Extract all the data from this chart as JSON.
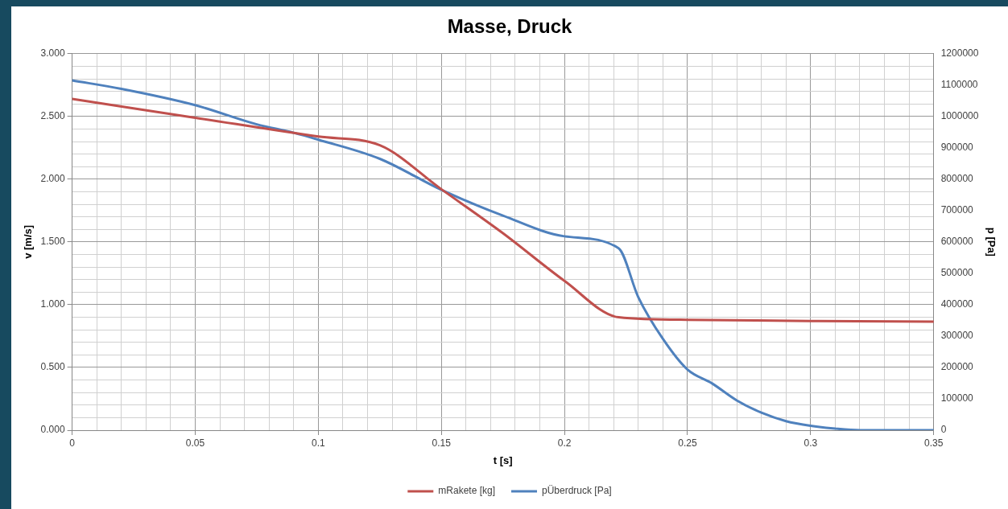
{
  "chart_data": {
    "type": "line",
    "title": "Masse, Druck",
    "xlabel": "t [s]",
    "ylabel": "v [m/s]",
    "y2label": "p [Pa]",
    "xlim": [
      0,
      0.35
    ],
    "xticks": [
      0,
      {
        "value": 0.01,
        "label": null
      },
      {
        "value": 0.02,
        "label": null
      },
      {
        "value": 0.03,
        "label": null
      },
      {
        "value": 0.04,
        "label": null
      },
      0.05,
      {
        "value": 0.06,
        "label": null
      },
      {
        "value": 0.07,
        "label": null
      },
      {
        "value": 0.08,
        "label": null
      },
      {
        "value": 0.09,
        "label": null
      },
      0.1,
      {
        "value": 0.11,
        "label": null
      },
      {
        "value": 0.12,
        "label": null
      },
      {
        "value": 0.13,
        "label": null
      },
      {
        "value": 0.14,
        "label": null
      },
      0.15,
      {
        "value": 0.16,
        "label": null
      },
      {
        "value": 0.17,
        "label": null
      },
      {
        "value": 0.18,
        "label": null
      },
      {
        "value": 0.19,
        "label": null
      },
      0.2,
      {
        "value": 0.21,
        "label": null
      },
      {
        "value": 0.22,
        "label": null
      },
      {
        "value": 0.23,
        "label": null
      },
      {
        "value": 0.24,
        "label": null
      },
      0.25,
      {
        "value": 0.26,
        "label": null
      },
      {
        "value": 0.27,
        "label": null
      },
      {
        "value": 0.28,
        "label": null
      },
      {
        "value": 0.29,
        "label": null
      },
      0.3,
      {
        "value": 0.31,
        "label": null
      },
      {
        "value": 0.32,
        "label": null
      },
      {
        "value": 0.33,
        "label": null
      },
      {
        "value": 0.34,
        "label": null
      },
      0.35
    ],
    "ylim": [
      0,
      3
    ],
    "yticks": [
      {
        "value": 0,
        "label": "0.000"
      },
      {
        "value": 0.1,
        "label": null
      },
      {
        "value": 0.2,
        "label": null
      },
      {
        "value": 0.3,
        "label": null
      },
      {
        "value": 0.4,
        "label": null
      },
      {
        "value": 0.5,
        "label": "0.500"
      },
      {
        "value": 0.6,
        "label": null
      },
      {
        "value": 0.7,
        "label": null
      },
      {
        "value": 0.8,
        "label": null
      },
      {
        "value": 0.9,
        "label": null
      },
      {
        "value": 1,
        "label": "1.000"
      },
      {
        "value": 1.1,
        "label": null
      },
      {
        "value": 1.2,
        "label": null
      },
      {
        "value": 1.3,
        "label": null
      },
      {
        "value": 1.4,
        "label": null
      },
      {
        "value": 1.5,
        "label": "1.500"
      },
      {
        "value": 1.6,
        "label": null
      },
      {
        "value": 1.7,
        "label": null
      },
      {
        "value": 1.8,
        "label": null
      },
      {
        "value": 1.9,
        "label": null
      },
      {
        "value": 2,
        "label": "2.000"
      },
      {
        "value": 2.1,
        "label": null
      },
      {
        "value": 2.2,
        "label": null
      },
      {
        "value": 2.3,
        "label": null
      },
      {
        "value": 2.4,
        "label": null
      },
      {
        "value": 2.5,
        "label": "2.500"
      },
      {
        "value": 2.6,
        "label": null
      },
      {
        "value": 2.7,
        "label": null
      },
      {
        "value": 2.8,
        "label": null
      },
      {
        "value": 2.9,
        "label": null
      },
      {
        "value": 3,
        "label": "3.000"
      }
    ],
    "y2lim": [
      0,
      1200000
    ],
    "y2ticks": [
      0,
      100000,
      200000,
      300000,
      400000,
      500000,
      600000,
      700000,
      800000,
      900000,
      1000000,
      1100000,
      1200000
    ],
    "grid": true,
    "legend": "bottom",
    "marker": "none",
    "line_style": "solid",
    "series": [
      {
        "name": "mRakete [kg]",
        "color": "#c0504d",
        "x": [
          0,
          0.05,
          0.1,
          0.125,
          0.15,
          0.175,
          0.2,
          0.222,
          0.25,
          0.3,
          0.35
        ],
        "values": [
          2.64,
          2.49,
          2.34,
          2.27,
          1.92,
          1.57,
          1.19,
          0.9,
          0.88,
          0.87,
          0.865
        ]
      },
      {
        "name": "pÜberdruck [Pa]",
        "color": "#4f81bd",
        "axis": "y2",
        "x": [
          0,
          0.02,
          0.05,
          0.075,
          0.09,
          0.1,
          0.125,
          0.15,
          0.175,
          0.2,
          0.222,
          0.23,
          0.24,
          0.25,
          0.26,
          0.27,
          0.28,
          0.29,
          0.3,
          0.31,
          0.32,
          0.35
        ],
        "values": [
          1115000,
          1088000,
          1036000,
          975000,
          948000,
          926000,
          865000,
          766000,
          684000,
          618000,
          580000,
          424000,
          291000,
          193000,
          149000,
          95000,
          56000,
          29000,
          14000,
          5000,
          0,
          0
        ]
      }
    ]
  }
}
